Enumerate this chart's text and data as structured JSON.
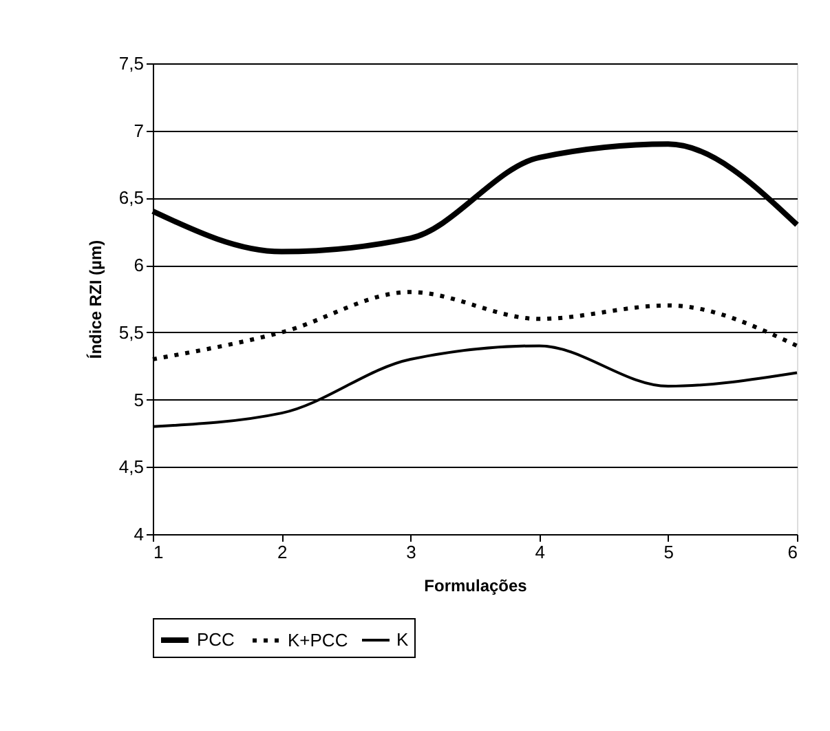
{
  "chart_data": {
    "type": "line",
    "xlabel": "Formulações",
    "ylabel": "Índice RZI (µm)",
    "x": [
      1,
      2,
      3,
      4,
      5,
      6
    ],
    "series": [
      {
        "name": "PCC",
        "color": "#000000",
        "line_style": "solid",
        "values": [
          6.4,
          6.1,
          6.2,
          6.8,
          6.9,
          6.3
        ]
      },
      {
        "name": "K+PCC",
        "color": "#000000",
        "line_style": "dotted",
        "values": [
          5.3,
          5.5,
          5.8,
          5.6,
          5.7,
          5.4
        ]
      },
      {
        "name": "K",
        "color": "#000000",
        "line_style": "solid",
        "values": [
          4.8,
          4.9,
          5.3,
          5.4,
          5.1,
          5.2
        ]
      }
    ],
    "xlim": [
      1,
      6
    ],
    "xticks": [
      1,
      2,
      3,
      4,
      5,
      6
    ],
    "ylim": [
      4,
      7.5
    ],
    "yticks": [
      4,
      {
        "value": 4.5,
        "label": "4,5"
      },
      5,
      {
        "value": 5.5,
        "label": "5,5"
      },
      6,
      {
        "value": 6.5,
        "label": "6,5"
      },
      7,
      {
        "value": 7.5,
        "label": "7,5"
      }
    ],
    "grid": "y",
    "legend": "bottom",
    "marker": "none"
  }
}
